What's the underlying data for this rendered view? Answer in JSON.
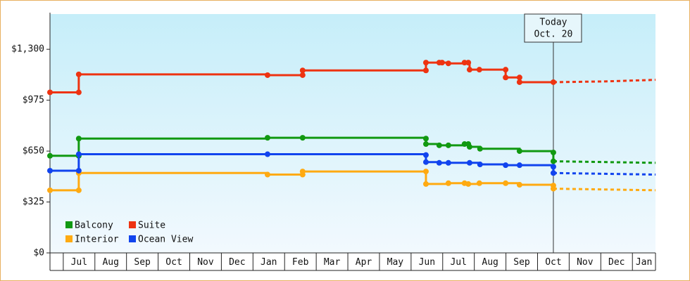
{
  "chart_data": {
    "type": "step-line",
    "xlim": [
      -0.42,
      18.73
    ],
    "xticks": [
      {
        "value": 0,
        "label": "Jul"
      },
      {
        "value": 1,
        "label": "Aug"
      },
      {
        "value": 2,
        "label": "Sep"
      },
      {
        "value": 3,
        "label": "Oct"
      },
      {
        "value": 4,
        "label": "Nov"
      },
      {
        "value": 5,
        "label": "Dec"
      },
      {
        "value": 6,
        "label": "Jan"
      },
      {
        "value": 7,
        "label": "Feb"
      },
      {
        "value": 8,
        "label": "Mar"
      },
      {
        "value": 9,
        "label": "Apr"
      },
      {
        "value": 10,
        "label": "May"
      },
      {
        "value": 11,
        "label": "Jun"
      },
      {
        "value": 12,
        "label": "Jul"
      },
      {
        "value": 13,
        "label": "Aug"
      },
      {
        "value": 14,
        "label": "Sep"
      },
      {
        "value": 15,
        "label": "Oct"
      },
      {
        "value": 16,
        "label": "Nov"
      },
      {
        "value": 17,
        "label": "Dec"
      },
      {
        "value": 18,
        "label": "Jan"
      }
    ],
    "ylim": [
      0,
      1525
    ],
    "yticks": [
      {
        "value": 0,
        "label": "$0"
      },
      {
        "value": 325,
        "label": "$325"
      },
      {
        "value": 650,
        "label": "$650"
      },
      {
        "value": 975,
        "label": "$975"
      },
      {
        "value": 1300,
        "label": "$1,300"
      }
    ],
    "today": {
      "x": 15.5,
      "label": [
        "Today",
        "Oct. 20"
      ]
    },
    "series": [
      {
        "name": "Balcony",
        "color": "#119911",
        "x": [
          -0.42,
          0.49,
          0.49,
          6.46,
          7.57,
          11.47,
          11.47,
          11.89,
          12.18,
          12.69,
          12.81,
          12.85,
          13.18,
          14.43,
          15.5,
          15.5
        ],
        "values": [
          620,
          620,
          730,
          735,
          735,
          730,
          695,
          687,
          687,
          695,
          695,
          677,
          665,
          650,
          641,
          585
        ],
        "forecast": {
          "x": [
            15.5,
            18.73
          ],
          "values": [
            585,
            575
          ]
        }
      },
      {
        "name": "Suite",
        "color": "#ee3311",
        "x": [
          -0.42,
          0.49,
          0.49,
          6.46,
          7.57,
          7.57,
          11.47,
          11.47,
          11.89,
          11.98,
          12.18,
          12.69,
          12.81,
          12.85,
          13.16,
          13.99,
          13.99,
          14.43,
          14.43,
          15.5
        ],
        "values": [
          1025,
          1025,
          1140,
          1135,
          1135,
          1165,
          1165,
          1215,
          1215,
          1215,
          1210,
          1215,
          1215,
          1170,
          1170,
          1170,
          1120,
          1120,
          1090,
          1090
        ],
        "forecast": {
          "x": [
            15.5,
            17.15,
            18.73
          ],
          "values": [
            1090,
            1095,
            1105
          ]
        }
      },
      {
        "name": "Interior",
        "color": "#ffaa11",
        "x": [
          -0.42,
          0.49,
          0.49,
          6.46,
          7.57,
          7.57,
          11.47,
          11.47,
          12.18,
          12.69,
          12.81,
          13.16,
          13.99,
          14.43,
          15.5,
          15.5
        ],
        "values": [
          400,
          400,
          510,
          500,
          500,
          520,
          520,
          440,
          445,
          445,
          440,
          445,
          445,
          435,
          430,
          410
        ],
        "forecast": {
          "x": [
            15.5,
            18.73
          ],
          "values": [
            410,
            400
          ]
        }
      },
      {
        "name": "Ocean View",
        "color": "#1144ee",
        "x": [
          -0.42,
          0.49,
          0.49,
          6.46,
          11.47,
          11.47,
          11.89,
          12.18,
          12.85,
          13.18,
          13.99,
          14.43,
          15.5,
          15.5
        ],
        "values": [
          525,
          525,
          630,
          630,
          625,
          580,
          575,
          575,
          575,
          565,
          560,
          560,
          550,
          510
        ],
        "forecast": {
          "x": [
            15.5,
            17.15,
            18.73
          ],
          "values": [
            510,
            505,
            500
          ]
        }
      }
    ]
  }
}
